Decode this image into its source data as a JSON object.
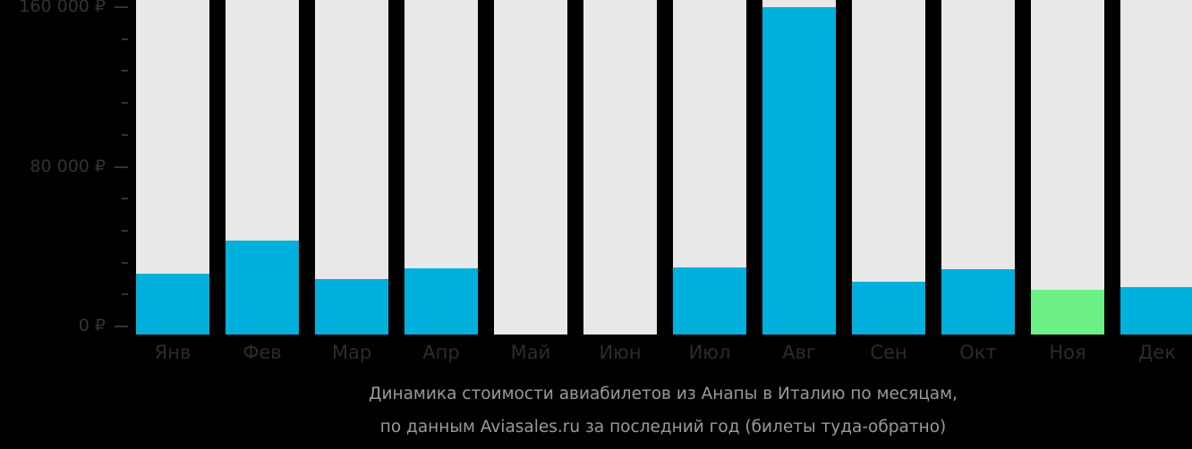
{
  "chart_data": {
    "type": "bar",
    "title": "Динамика стоимости авиабилетов из Анапы в Италию по месяцам, по данным Aviasales.ru за последний год (билеты туда-обратно)",
    "title_lines": [
      "Динамика стоимости авиабилетов из Анапы в Италию по месяцам,",
      "по данным Aviasales.ru за последний год (билеты туда-обратно)"
    ],
    "xlabel": "",
    "ylabel": "",
    "categories": [
      "Янв",
      "Фев",
      "Мар",
      "Апр",
      "Май",
      "Июн",
      "Июл",
      "Авг",
      "Сен",
      "Окт",
      "Ноя",
      "Дек"
    ],
    "values": [
      26400,
      43000,
      23800,
      29100,
      0,
      0,
      29600,
      160000,
      22400,
      28700,
      18400,
      19700
    ],
    "highlight": {
      "index": 10,
      "label": "cheapest month",
      "color": "#6cf086"
    },
    "ylim": [
      0,
      160000
    ],
    "yticks": [
      {
        "value": 160000,
        "label": "160 000 ₽"
      },
      {
        "value": 80000,
        "label": "80 000 ₽"
      },
      {
        "value": 0,
        "label": "0 ₽"
      }
    ],
    "minor_tick_step": 16000,
    "grid": false,
    "legend": null,
    "colors": {
      "bar": "#00b0dc",
      "highlight": "#6cf086",
      "bar_background": "#e8e8e8",
      "background": "#000000",
      "axis_text": "#333333",
      "caption_text": "#9a9a9a"
    }
  }
}
